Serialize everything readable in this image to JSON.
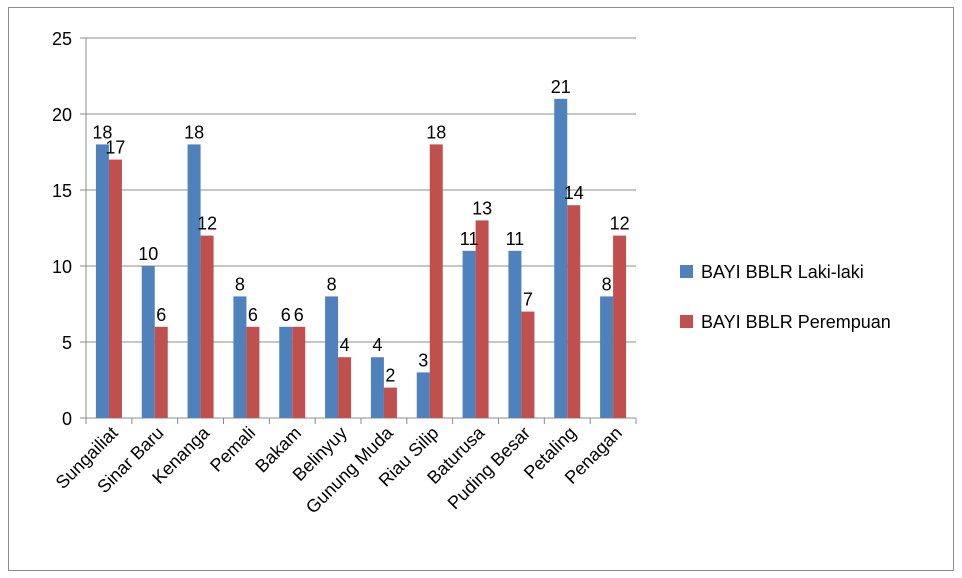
{
  "chart_data": {
    "type": "bar",
    "title": "",
    "xlabel": "",
    "ylabel": "",
    "ylim": [
      0,
      25
    ],
    "yticks": [
      0,
      5,
      10,
      15,
      20,
      25
    ],
    "grid": true,
    "legend_position": "right",
    "categories": [
      "Sungailiat",
      "Sinar Baru",
      "Kenanga",
      "Pemali",
      "Bakam",
      "Belinyuy",
      "Gunung Muda",
      "Riau Silip",
      "Baturusa",
      "Puding Besar",
      "Petaling",
      "Penagan"
    ],
    "series": [
      {
        "name": "BAYI BBLR Laki-laki",
        "color": "#4f81bd",
        "values": [
          18,
          10,
          18,
          8,
          6,
          8,
          4,
          3,
          11,
          11,
          21,
          8
        ]
      },
      {
        "name": "BAYI BBLR Perempuan",
        "color": "#c0504d",
        "values": [
          17,
          6,
          12,
          6,
          6,
          4,
          2,
          18,
          13,
          7,
          14,
          12
        ]
      }
    ]
  }
}
